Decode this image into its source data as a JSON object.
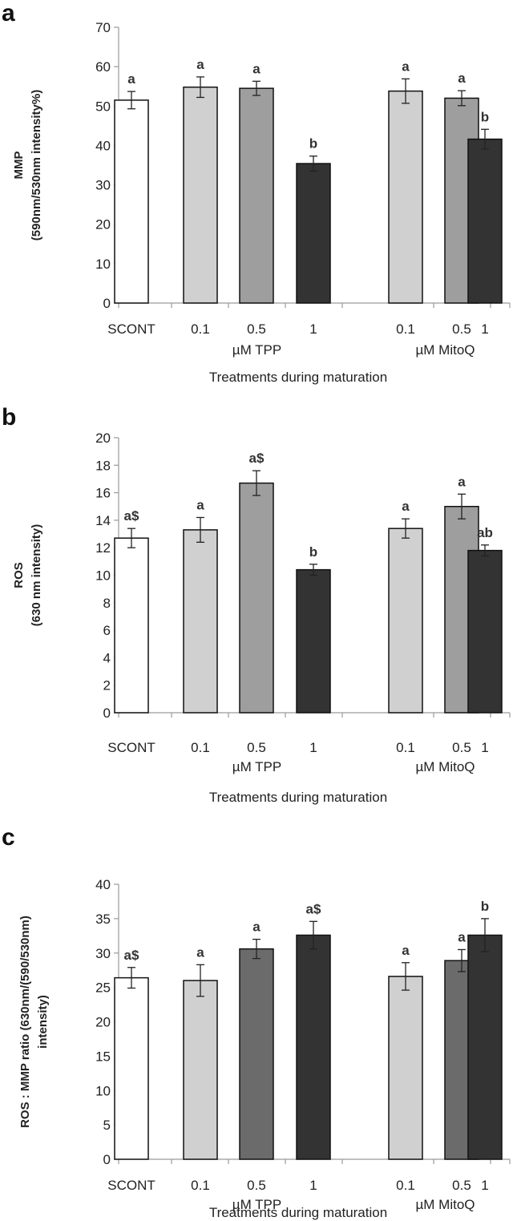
{
  "figure": {
    "colors": {
      "SCONT": "#ffffff",
      "TPP_0.1": "#d0d0d0",
      "TPP_0.5": "#9e9e9e",
      "TPP_1": "#333333",
      "MitoQ_0.1": "#d0d0d0",
      "MitoQ_0.5": "#9e9e9e",
      "MitoQ_1": "#333333",
      "c_0.5": "#6b6b6b"
    }
  },
  "chart_data": [
    {
      "panel": "a",
      "type": "bar",
      "ylabel_lines": [
        "MMP",
        "(590nm/530nm intensity%)"
      ],
      "xlabel": "Treatments during maturation",
      "ylim": [
        0,
        70
      ],
      "yticks": [
        0,
        10,
        20,
        30,
        40,
        50,
        60,
        70
      ],
      "categories": [
        "SCONT",
        "0.1",
        "0.5",
        "1",
        "0.1",
        "0.5",
        "1"
      ],
      "groups": [
        {
          "label": "µM TPP",
          "indices": [
            1,
            2,
            3
          ]
        },
        {
          "label": "µM MitoQ",
          "indices": [
            4,
            5,
            6
          ]
        }
      ],
      "values": [
        51.5,
        54.8,
        54.5,
        35.4,
        53.8,
        52.0,
        41.6
      ],
      "errors": [
        2.2,
        2.6,
        1.8,
        1.9,
        3.1,
        1.9,
        2.5
      ],
      "significance": [
        "a",
        "a",
        "a",
        "b",
        "a",
        "a",
        "b"
      ],
      "bar_colors": [
        "#ffffff",
        "#d0d0d0",
        "#9e9e9e",
        "#333333",
        "#d0d0d0",
        "#9e9e9e",
        "#333333"
      ]
    },
    {
      "panel": "b",
      "type": "bar",
      "ylabel_lines": [
        "ROS",
        "(630 nm intensity)"
      ],
      "xlabel": "Treatments during maturation",
      "ylim": [
        0,
        20
      ],
      "yticks": [
        0,
        2,
        4,
        6,
        8,
        10,
        12,
        14,
        16,
        18,
        20
      ],
      "categories": [
        "SCONT",
        "0.1",
        "0.5",
        "1",
        "0.1",
        "0.5",
        "1"
      ],
      "groups": [
        {
          "label": "µM TPP",
          "indices": [
            1,
            2,
            3
          ]
        },
        {
          "label": "µM MitoQ",
          "indices": [
            4,
            5,
            6
          ]
        }
      ],
      "values": [
        12.7,
        13.3,
        16.7,
        10.4,
        13.4,
        15.0,
        11.8
      ],
      "errors": [
        0.7,
        0.9,
        0.9,
        0.4,
        0.7,
        0.9,
        0.4
      ],
      "significance": [
        "a$",
        "a",
        "a$",
        "b",
        "a",
        "a",
        "ab"
      ],
      "bar_colors": [
        "#ffffff",
        "#d0d0d0",
        "#9e9e9e",
        "#333333",
        "#d0d0d0",
        "#9e9e9e",
        "#333333"
      ]
    },
    {
      "panel": "c",
      "type": "bar",
      "ylabel_lines": [
        "ROS : MMP ratio (630nm/(590/530nm)",
        "intensity)"
      ],
      "xlabel": "Treatments during maturation",
      "ylim": [
        0,
        40
      ],
      "yticks": [
        0,
        5,
        10,
        15,
        20,
        25,
        30,
        35,
        40
      ],
      "categories": [
        "SCONT",
        "0.1",
        "0.5",
        "1",
        "0.1",
        "0.5",
        "1"
      ],
      "groups": [
        {
          "label": "µM TPP",
          "indices": [
            1,
            2,
            3
          ]
        },
        {
          "label": "µM MitoQ",
          "indices": [
            4,
            5,
            6
          ]
        }
      ],
      "values": [
        26.4,
        26.0,
        30.6,
        32.6,
        26.6,
        28.9,
        32.6
      ],
      "errors": [
        1.5,
        2.3,
        1.4,
        2.0,
        2.0,
        1.6,
        2.4
      ],
      "significance": [
        "a$",
        "a",
        "a",
        "a$",
        "a",
        "a",
        "b"
      ],
      "bar_colors": [
        "#ffffff",
        "#d0d0d0",
        "#6b6b6b",
        "#333333",
        "#d0d0d0",
        "#6b6b6b",
        "#333333"
      ]
    }
  ]
}
